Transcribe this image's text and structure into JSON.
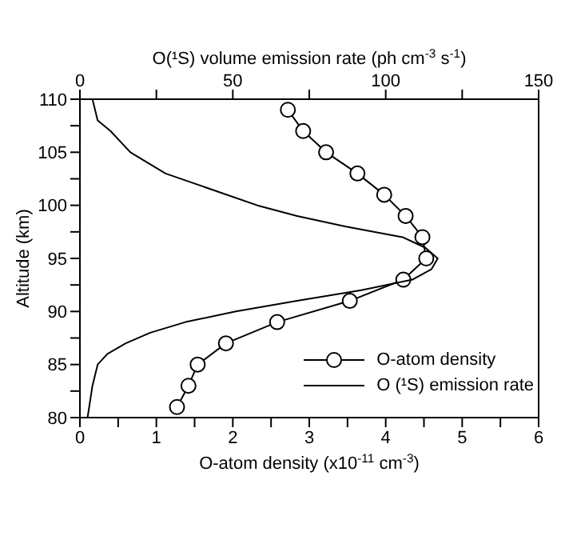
{
  "chart_data": {
    "type": "line",
    "xlabel": "O-atom density (x10$^{-11}$ cm$^{-3}$)",
    "ylabel": "Altitude (km)",
    "x2label": "O(¹S) volume emission rate (ph cm$^{-3}$ s$^{-1}$)",
    "xlim": [
      0,
      6
    ],
    "xticks": [
      0,
      {
        "value": 0.5,
        "label": null
      },
      1,
      {
        "value": 1.5,
        "label": null
      },
      2,
      {
        "value": 2.5,
        "label": null
      },
      3,
      {
        "value": 3.5,
        "label": null
      },
      4,
      {
        "value": 4.5,
        "label": null
      },
      5,
      {
        "value": 5.5,
        "label": null
      },
      6
    ],
    "x2lim": [
      0,
      150
    ],
    "x2ticks": [
      0,
      {
        "value": 25,
        "label": null
      },
      50,
      {
        "value": 75,
        "label": null
      },
      100,
      {
        "value": 125,
        "label": null
      },
      150
    ],
    "ylim": [
      80,
      110
    ],
    "yticks": [
      80,
      {
        "value": 82.5,
        "label": null
      },
      85,
      {
        "value": 87.5,
        "label": null
      },
      90,
      {
        "value": 92.5,
        "label": null
      },
      95,
      {
        "value": 97.5,
        "label": null
      },
      100,
      {
        "value": 102.5,
        "label": null
      },
      105,
      {
        "value": 107.5,
        "label": null
      },
      110
    ],
    "legend": "bottom right",
    "series": [
      {
        "name": "O-atom density",
        "color": "#000000",
        "marker": "circle",
        "x": [
          2.72,
          2.92,
          3.22,
          3.63,
          3.98,
          4.26,
          4.48,
          4.53,
          4.23,
          3.53,
          2.58,
          1.91,
          1.54,
          1.42,
          1.27
        ],
        "values": [
          109,
          107,
          105,
          103,
          101,
          99,
          97,
          95,
          93,
          91,
          89,
          87,
          85,
          83,
          81
        ]
      },
      {
        "name": "O (¹S) emission rate",
        "color": "#000000",
        "marker": "none",
        "axis": "x2",
        "x": [
          4.1,
          5.8,
          10,
          16.5,
          28,
          43,
          58,
          71,
          87,
          105.5,
          113,
          117,
          115,
          108.7,
          92,
          71,
          51,
          34.5,
          23,
          15,
          9,
          5.8,
          4.1,
          2.5
        ],
        "values": [
          110,
          108,
          107,
          105,
          103,
          101.5,
          100,
          99,
          98,
          97,
          96,
          95,
          94,
          93,
          92,
          91,
          90,
          89,
          88,
          87,
          86,
          85,
          83,
          80
        ]
      }
    ]
  }
}
